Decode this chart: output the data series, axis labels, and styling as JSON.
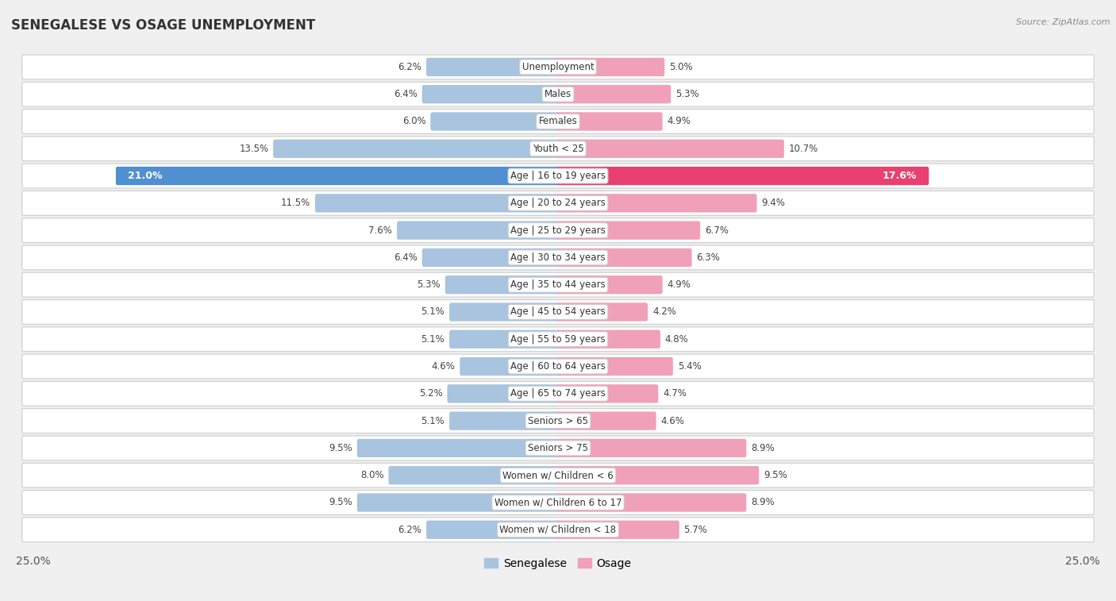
{
  "title": "SENEGALESE VS OSAGE UNEMPLOYMENT",
  "source": "Source: ZipAtlas.com",
  "categories": [
    "Unemployment",
    "Males",
    "Females",
    "Youth < 25",
    "Age | 16 to 19 years",
    "Age | 20 to 24 years",
    "Age | 25 to 29 years",
    "Age | 30 to 34 years",
    "Age | 35 to 44 years",
    "Age | 45 to 54 years",
    "Age | 55 to 59 years",
    "Age | 60 to 64 years",
    "Age | 65 to 74 years",
    "Seniors > 65",
    "Seniors > 75",
    "Women w/ Children < 6",
    "Women w/ Children 6 to 17",
    "Women w/ Children < 18"
  ],
  "senegalese": [
    6.2,
    6.4,
    6.0,
    13.5,
    21.0,
    11.5,
    7.6,
    6.4,
    5.3,
    5.1,
    5.1,
    4.6,
    5.2,
    5.1,
    9.5,
    8.0,
    9.5,
    6.2
  ],
  "osage": [
    5.0,
    5.3,
    4.9,
    10.7,
    17.6,
    9.4,
    6.7,
    6.3,
    4.9,
    4.2,
    4.8,
    5.4,
    4.7,
    4.6,
    8.9,
    9.5,
    8.9,
    5.7
  ],
  "senegalese_color_normal": "#a8c4df",
  "osage_color_normal": "#f0a0b8",
  "senegalese_color_highlight": "#5090d0",
  "osage_color_highlight": "#e84070",
  "highlight_row": 4,
  "xlim": 25.0,
  "legend_senegalese": "Senegalese",
  "legend_osage": "Osage",
  "fig_bg": "#f0f0f0",
  "row_bg": "#ffffff",
  "row_border": "#cccccc"
}
